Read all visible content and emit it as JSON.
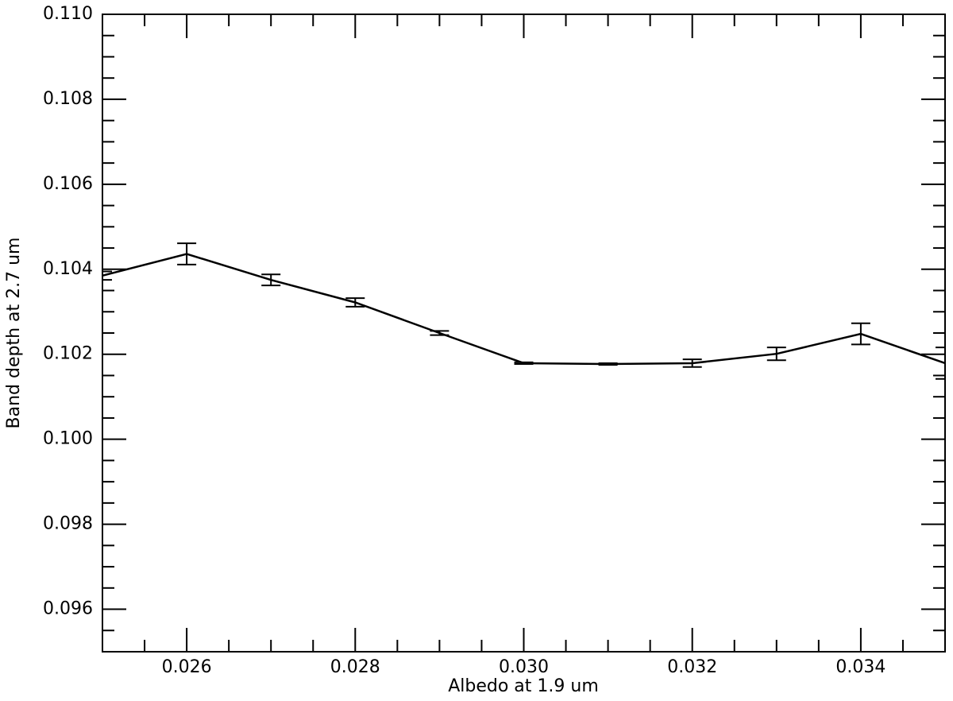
{
  "chart_data": {
    "type": "line",
    "x_label": "Albedo at 1.9 um",
    "y_label": "Band depth at 2.7 um",
    "x": [
      0.025,
      0.026,
      0.027,
      0.028,
      0.029,
      0.03,
      0.031,
      0.032,
      0.033,
      0.034,
      0.035
    ],
    "series": [
      {
        "color": "#000000",
        "values": [
          0.10385,
          0.10436,
          0.10375,
          0.10322,
          0.1025,
          0.10179,
          0.10177,
          0.10179,
          0.10201,
          0.10248,
          0.10179
        ],
        "errors": [
          0.0001,
          0.00025,
          0.00013,
          0.0001,
          5e-05,
          2e-05,
          2e-05,
          9e-05,
          0.00015,
          0.00025,
          0.00037
        ]
      }
    ],
    "xlim": [
      0.025,
      0.035
    ],
    "xticks": [
      0.026,
      0.028,
      {
        "value": 0.03,
        "label": "0.030"
      },
      0.032,
      0.034
    ],
    "ylim": [
      0.095,
      0.11
    ],
    "yticks": [
      0.096,
      0.098,
      {
        "value": 0.1,
        "label": "0.100"
      },
      0.102,
      0.104,
      0.106,
      0.108,
      {
        "value": 0.11,
        "label": "0.110"
      }
    ],
    "minor_ticks": 4,
    "grid": false
  }
}
